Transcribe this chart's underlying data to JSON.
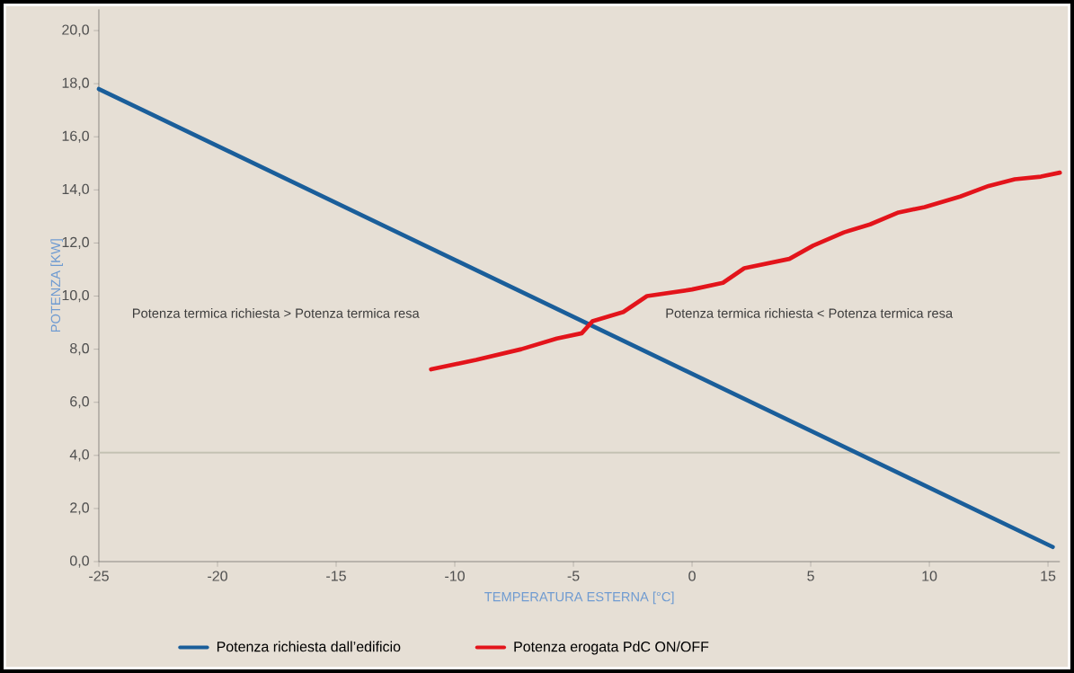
{
  "chart_data": {
    "type": "line",
    "xlabel": "TEMPERATURA ESTERNA [°C]",
    "ylabel": "POTENZA [KW]",
    "xlim": [
      -25,
      15.5
    ],
    "ylim": [
      0,
      20.8
    ],
    "xticks": [
      -25,
      -20,
      -15,
      -10,
      -5,
      0,
      5,
      10,
      15
    ],
    "yticks": [
      {
        "value": 0,
        "label": "0,0"
      },
      {
        "value": 2,
        "label": "2,0"
      },
      {
        "value": 4,
        "label": "4,0"
      },
      {
        "value": 6,
        "label": "6,0"
      },
      {
        "value": 8,
        "label": "8,0"
      },
      {
        "value": 10,
        "label": "10,0"
      },
      {
        "value": 12,
        "label": "12,0"
      },
      {
        "value": 14,
        "label": "14,0"
      },
      {
        "value": 16,
        "label": "16,0"
      },
      {
        "value": 18,
        "label": "18,0"
      },
      {
        "value": 20,
        "label": "20,0"
      }
    ],
    "series": [
      {
        "name": "Potenza richiesta dall’edificio",
        "color": "#1a5e9a",
        "x": [
          -25,
          15.2
        ],
        "values": [
          17.8,
          0.55
        ]
      },
      {
        "name": "Potenza erogata PdC ON/OFF",
        "color": "#e3141b",
        "x": [
          -11,
          -9.1,
          -7.2,
          -5.7,
          -4.65,
          -4.2,
          -2.9,
          -1.9,
          0,
          1.3,
          2.2,
          4.1,
          5.1,
          6.4,
          7.5,
          8.7,
          9.8,
          11.3,
          12.5,
          13.6,
          14.7,
          15.5
        ],
        "values": [
          7.24,
          7.6,
          8.0,
          8.4,
          8.6,
          9.05,
          9.4,
          10.0,
          10.25,
          10.5,
          11.05,
          11.4,
          11.9,
          12.4,
          12.7,
          13.15,
          13.35,
          13.75,
          14.15,
          14.4,
          14.5,
          14.65
        ]
      }
    ],
    "ref_lines": [
      {
        "axis": "y",
        "value": 4.1,
        "color": "#c4c2b3"
      }
    ],
    "annotations": [
      "Potenza termica richiesta > Potenza termica resa",
      "Potenza termica richiesta < Potenza termica resa"
    ],
    "legend": "bottom",
    "grid": false,
    "marker": "none",
    "line_style": "solid"
  }
}
